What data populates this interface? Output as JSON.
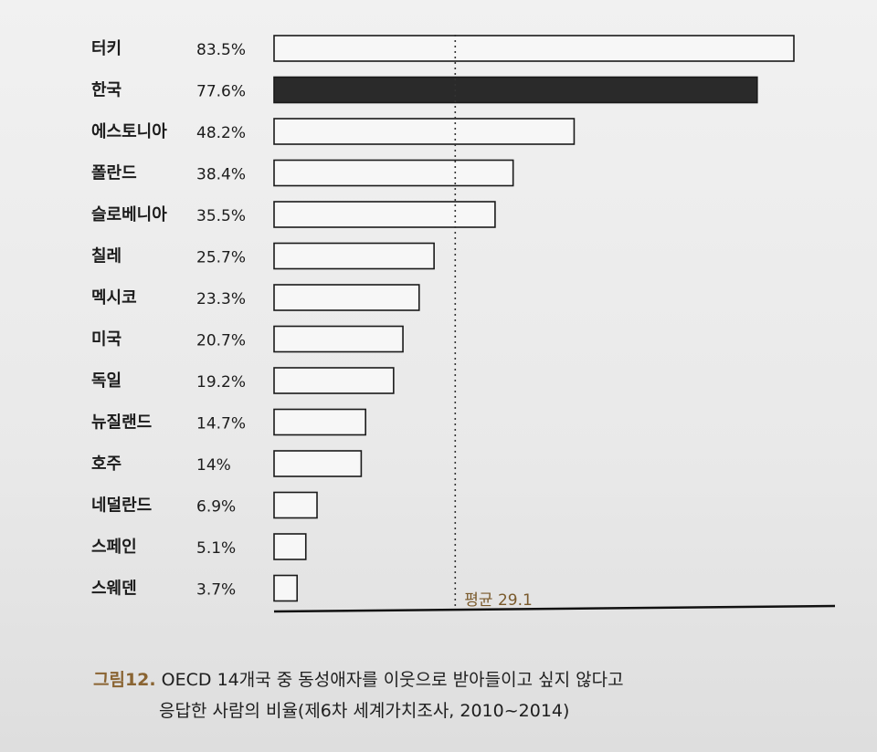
{
  "chart_data": {
    "type": "bar",
    "orientation": "horizontal",
    "categories": [
      "터키",
      "한국",
      "에스토니아",
      "폴란드",
      "슬로베니아",
      "칠레",
      "멕시코",
      "미국",
      "독일",
      "뉴질랜드",
      "호주",
      "네덜란드",
      "스페인",
      "스웨덴"
    ],
    "values": [
      83.5,
      77.6,
      48.2,
      38.4,
      35.5,
      25.7,
      23.3,
      20.7,
      19.2,
      14.7,
      14,
      6.9,
      5.1,
      3.7
    ],
    "value_labels": [
      "83.5%",
      "77.6%",
      "48.2%",
      "38.4%",
      "35.5%",
      "25.7%",
      "23.3%",
      "20.7%",
      "19.2%",
      "14.7%",
      "14%",
      "6.9%",
      "5.1%",
      "3.7%"
    ],
    "highlight_category": "한국",
    "average": 29.1,
    "average_label": "평균 29.1",
    "xlim": [
      0,
      83.5
    ],
    "grid": false,
    "colors": {
      "bar_fill": "#f7f7f7",
      "bar_stroke": "#1a1a1a",
      "highlight": "#2a2a2a",
      "average_label": "#7a5a2c",
      "figure_number": "#8a6432"
    }
  },
  "caption": {
    "figure_number": "그림12.",
    "line1": "OECD 14개국 중 동성애자를 이웃으로 받아들이고 싶지 않다고",
    "line2": "응답한 사람의 비율(제6차 세계가치조사, 2010~2014)"
  }
}
